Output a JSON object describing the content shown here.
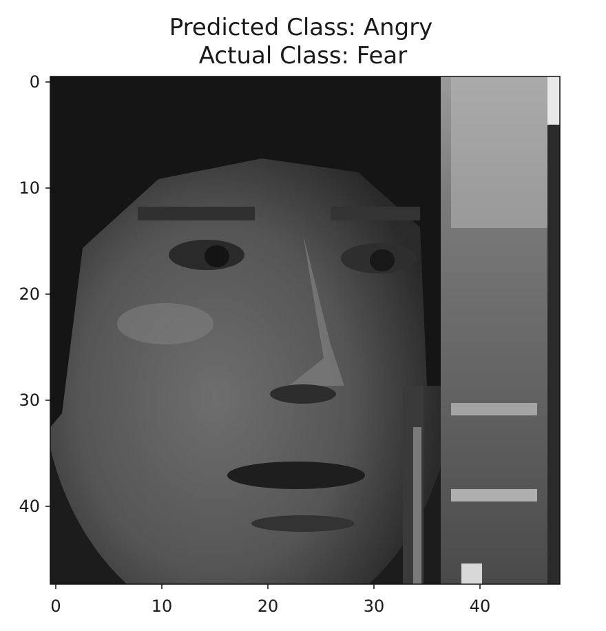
{
  "title": {
    "line1": "Predicted Class: Angry",
    "line2": "Actual Class: Fear"
  },
  "image": {
    "description_kind": "grayscale-face-48x48",
    "grid_size": [
      48,
      48
    ]
  },
  "axes": {
    "x_ticks": [
      "0",
      "10",
      "20",
      "30",
      "40"
    ],
    "y_ticks": [
      "0",
      "10",
      "20",
      "30",
      "40"
    ]
  }
}
